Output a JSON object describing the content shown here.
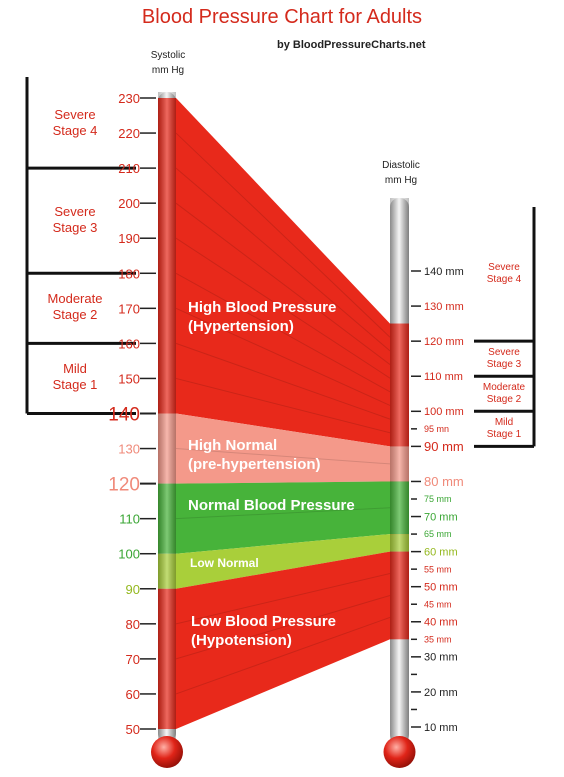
{
  "header": {
    "title": "Blood Pressure Chart for Adults",
    "byline": "by BloodPressureCharts.net"
  },
  "systolic": {
    "title_line1": "Systolic",
    "title_line2": "mm Hg",
    "ticks": [
      {
        "value": 230,
        "label": "230",
        "color": "#d42a1c",
        "major": false
      },
      {
        "value": 220,
        "label": "220",
        "color": "#d42a1c",
        "major": false
      },
      {
        "value": 210,
        "label": "210",
        "color": "#d42a1c",
        "major": false
      },
      {
        "value": 200,
        "label": "200",
        "color": "#d42a1c",
        "major": false
      },
      {
        "value": 190,
        "label": "190",
        "color": "#d42a1c",
        "major": false
      },
      {
        "value": 180,
        "label": "180",
        "color": "#d42a1c",
        "major": false
      },
      {
        "value": 170,
        "label": "170",
        "color": "#d42a1c",
        "major": false
      },
      {
        "value": 160,
        "label": "160",
        "color": "#d42a1c",
        "major": false
      },
      {
        "value": 150,
        "label": "150",
        "color": "#d42a1c",
        "major": false
      },
      {
        "value": 140,
        "label": "140",
        "color": "#d42a1c",
        "major": true
      },
      {
        "value": 130,
        "label": "130",
        "color": "#f08a7a",
        "major": false
      },
      {
        "value": 120,
        "label": "120",
        "color": "#f08a7a",
        "major": true
      },
      {
        "value": 110,
        "label": "110",
        "color": "#3aa634",
        "major": false
      },
      {
        "value": 100,
        "label": "100",
        "color": "#3aa634",
        "major": false
      },
      {
        "value": 90,
        "label": "90",
        "color": "#94b81e",
        "major": false
      },
      {
        "value": 80,
        "label": "80",
        "color": "#d42a1c",
        "major": false
      },
      {
        "value": 70,
        "label": "70",
        "color": "#d42a1c",
        "major": false
      },
      {
        "value": 60,
        "label": "60",
        "color": "#d42a1c",
        "major": false
      },
      {
        "value": 50,
        "label": "50",
        "color": "#d42a1c",
        "major": false
      }
    ]
  },
  "diastolic": {
    "title_line1": "Diastolic",
    "title_line2": "mm Hg",
    "ticks": [
      {
        "value": 140,
        "label": "140 mm",
        "color": "#222222",
        "size": "normal"
      },
      {
        "value": 130,
        "label": "130 mm",
        "color": "#d42a1c",
        "size": "normal"
      },
      {
        "value": 120,
        "label": "120 mm",
        "color": "#d42a1c",
        "size": "normal"
      },
      {
        "value": 110,
        "label": "110 mm",
        "color": "#d42a1c",
        "size": "normal"
      },
      {
        "value": 100,
        "label": "100 mm",
        "color": "#d42a1c",
        "size": "normal"
      },
      {
        "value": 95,
        "label": "95 mn",
        "color": "#d42a1c",
        "size": "small"
      },
      {
        "value": 90,
        "label": "90 mm",
        "color": "#d42a1c",
        "size": "large"
      },
      {
        "value": 80,
        "label": "80 mm",
        "color": "#f08a7a",
        "size": "large"
      },
      {
        "value": 75,
        "label": "75 mm",
        "color": "#3aa634",
        "size": "small"
      },
      {
        "value": 70,
        "label": "70 mm",
        "color": "#3aa634",
        "size": "normal"
      },
      {
        "value": 65,
        "label": "65 mm",
        "color": "#3aa634",
        "size": "small"
      },
      {
        "value": 60,
        "label": "60 mm",
        "color": "#94b81e",
        "size": "normal"
      },
      {
        "value": 55,
        "label": "55 mm",
        "color": "#d42a1c",
        "size": "small"
      },
      {
        "value": 50,
        "label": "50 mm",
        "color": "#d42a1c",
        "size": "normal"
      },
      {
        "value": 45,
        "label": "45 mm",
        "color": "#d42a1c",
        "size": "small"
      },
      {
        "value": 40,
        "label": "40 mm",
        "color": "#d42a1c",
        "size": "normal"
      },
      {
        "value": 35,
        "label": "35 mm",
        "color": "#d42a1c",
        "size": "small"
      },
      {
        "value": 30,
        "label": "30 mm",
        "color": "#222222",
        "size": "normal"
      },
      {
        "value": 25,
        "label": "",
        "color": "#222222",
        "size": "small"
      },
      {
        "value": 20,
        "label": "20 mm",
        "color": "#222222",
        "size": "normal"
      },
      {
        "value": 15,
        "label": "",
        "color": "#222222",
        "size": "small"
      },
      {
        "value": 10,
        "label": "10 mm",
        "color": "#222222",
        "size": "normal"
      }
    ]
  },
  "bands": [
    {
      "id": "high",
      "label_line1": "High Blood Pressure",
      "label_line2": "(Hypertension)",
      "sys_range": [
        140,
        230
      ],
      "dia_range": [
        90,
        125
      ],
      "color": "#e8291b"
    },
    {
      "id": "high-normal",
      "label_line1": "High Normal",
      "label_line2": "(pre-hypertension)",
      "sys_range": [
        120,
        140
      ],
      "dia_range": [
        80,
        90
      ],
      "color": "#f4998a"
    },
    {
      "id": "normal",
      "label_line1": "Normal Blood Pressure",
      "label_line2": "",
      "sys_range": [
        100,
        120
      ],
      "dia_range": [
        65,
        80
      ],
      "color": "#47b33a"
    },
    {
      "id": "low-normal",
      "label_line1": "Low Normal",
      "label_line2": "",
      "sys_range": [
        90,
        100
      ],
      "dia_range": [
        60,
        65
      ],
      "color": "#a9cf3a"
    },
    {
      "id": "low",
      "label_line1": "Low Blood Pressure",
      "label_line2": "(Hypotension)",
      "sys_range": [
        50,
        90
      ],
      "dia_range": [
        35,
        60
      ],
      "color": "#e8291b"
    }
  ],
  "systolic_stages": [
    {
      "label_line1": "Severe",
      "label_line2": "Stage 4",
      "range": [
        210,
        235
      ]
    },
    {
      "label_line1": "Severe",
      "label_line2": "Stage 3",
      "range": [
        180,
        210
      ]
    },
    {
      "label_line1": "Moderate",
      "label_line2": "Stage 2",
      "range": [
        160,
        180
      ]
    },
    {
      "label_line1": "Mild",
      "label_line2": "Stage 1",
      "range": [
        140,
        160
      ]
    }
  ],
  "diastolic_stages": [
    {
      "label_line1": "Severe",
      "label_line2": "Stage 4",
      "range": [
        120,
        130
      ]
    },
    {
      "label_line1": "Severe",
      "label_line2": "Stage 3",
      "range": [
        110,
        120
      ]
    },
    {
      "label_line1": "Moderate",
      "label_line2": "Stage 2",
      "range": [
        100,
        110
      ]
    },
    {
      "label_line1": "Mild",
      "label_line2": "Stage 1",
      "range": [
        90,
        100
      ]
    }
  ],
  "colors": {
    "accent_red": "#d42a1c",
    "mercury_red": "#e8291b",
    "tube_grey": "#d8d8d8"
  }
}
